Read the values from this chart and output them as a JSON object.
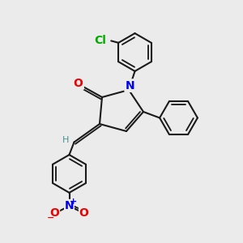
{
  "bg_color": "#ebebeb",
  "bond_color": "#1a1a1a",
  "bond_width": 1.5,
  "atom_colors": {
    "N": "#0000ee",
    "O_carbonyl": "#ee0000",
    "Cl": "#00aa00",
    "H": "#4a9090",
    "N_nitro": "#0000ee",
    "O_nitro": "#ee0000"
  },
  "font_size": 9,
  "figsize": [
    3.0,
    3.0
  ],
  "dpi": 100,
  "xlim": [
    0,
    10
  ],
  "ylim": [
    0,
    10
  ]
}
